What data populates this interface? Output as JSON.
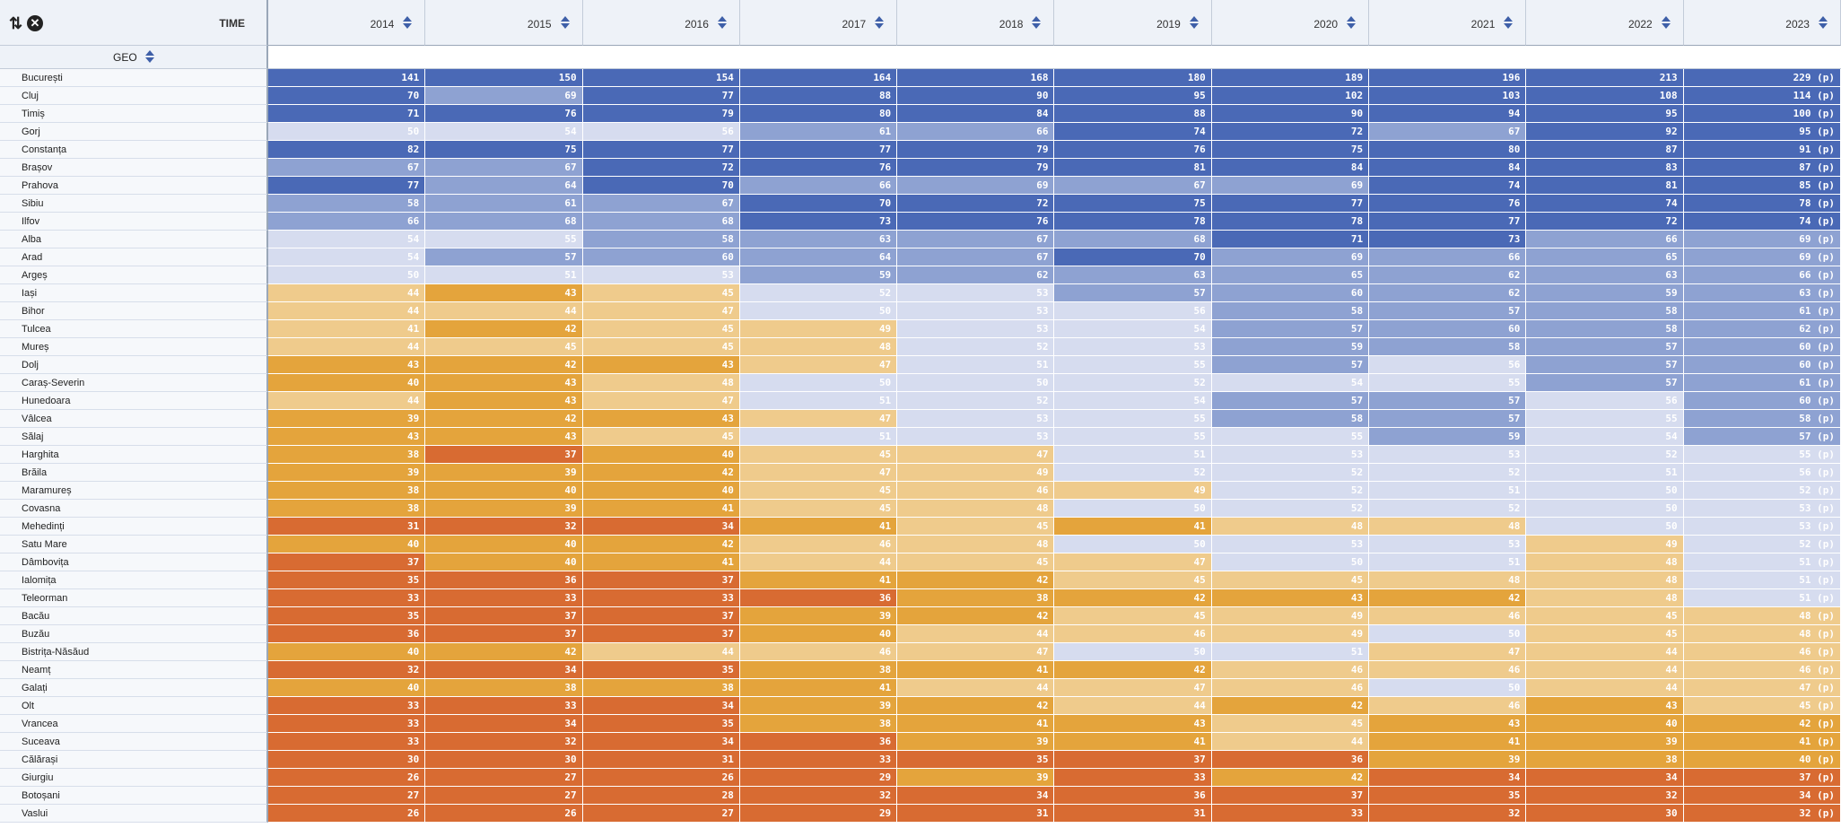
{
  "toolbar": {
    "sort_icon": "sort-arrows-icon",
    "close_icon": "close-circle-icon",
    "time_label": "TIME"
  },
  "geo_label": "GEO",
  "colors": {
    "dark_blue": "#4a69b6",
    "mid_blue": "#8ea2d2",
    "light_blue": "#d6dcef",
    "light_orange": "#efcb8c",
    "orange": "#e4a43c",
    "dark_orange": "#d86b32"
  },
  "years": [
    "2014",
    "2015",
    "2016",
    "2017",
    "2018",
    "2019",
    "2020",
    "2021",
    "2022",
    "2023"
  ],
  "rows": [
    {
      "label": "București",
      "values": [
        "141",
        "150",
        "154",
        "164",
        "168",
        "180",
        "189",
        "196",
        "213",
        "229 (p)"
      ],
      "levels": [
        6,
        6,
        6,
        6,
        6,
        6,
        6,
        6,
        6,
        6
      ]
    },
    {
      "label": "Cluj",
      "values": [
        "70",
        "69",
        "77",
        "88",
        "90",
        "95",
        "102",
        "103",
        "108",
        "114 (p)"
      ],
      "levels": [
        6,
        5,
        6,
        6,
        6,
        6,
        6,
        6,
        6,
        6
      ]
    },
    {
      "label": "Timiș",
      "values": [
        "71",
        "76",
        "79",
        "80",
        "84",
        "88",
        "90",
        "94",
        "95",
        "100 (p)"
      ],
      "levels": [
        6,
        6,
        6,
        6,
        6,
        6,
        6,
        6,
        6,
        6
      ]
    },
    {
      "label": "Gorj",
      "values": [
        "50",
        "54",
        "56",
        "61",
        "66",
        "74",
        "72",
        "67",
        "92",
        "95 (p)"
      ],
      "levels": [
        4,
        4,
        4,
        5,
        5,
        6,
        6,
        5,
        6,
        6
      ]
    },
    {
      "label": "Constanța",
      "values": [
        "82",
        "75",
        "77",
        "77",
        "79",
        "76",
        "75",
        "80",
        "87",
        "91 (p)"
      ],
      "levels": [
        6,
        6,
        6,
        6,
        6,
        6,
        6,
        6,
        6,
        6
      ]
    },
    {
      "label": "Brașov",
      "values": [
        "67",
        "67",
        "72",
        "76",
        "79",
        "81",
        "84",
        "84",
        "83",
        "87 (p)"
      ],
      "levels": [
        5,
        5,
        6,
        6,
        6,
        6,
        6,
        6,
        6,
        6
      ]
    },
    {
      "label": "Prahova",
      "values": [
        "77",
        "64",
        "70",
        "66",
        "69",
        "67",
        "69",
        "74",
        "81",
        "85 (p)"
      ],
      "levels": [
        6,
        5,
        6,
        5,
        5,
        5,
        5,
        6,
        6,
        6
      ]
    },
    {
      "label": "Sibiu",
      "values": [
        "58",
        "61",
        "67",
        "70",
        "72",
        "75",
        "77",
        "76",
        "74",
        "78 (p)"
      ],
      "levels": [
        5,
        5,
        5,
        6,
        6,
        6,
        6,
        6,
        6,
        6
      ]
    },
    {
      "label": "Ilfov",
      "values": [
        "66",
        "68",
        "68",
        "73",
        "76",
        "78",
        "78",
        "77",
        "72",
        "74 (p)"
      ],
      "levels": [
        5,
        5,
        5,
        6,
        6,
        6,
        6,
        6,
        6,
        6
      ]
    },
    {
      "label": "Alba",
      "values": [
        "54",
        "55",
        "58",
        "63",
        "67",
        "68",
        "71",
        "73",
        "66",
        "69 (p)"
      ],
      "levels": [
        4,
        4,
        5,
        5,
        5,
        5,
        6,
        6,
        5,
        5
      ]
    },
    {
      "label": "Arad",
      "values": [
        "54",
        "57",
        "60",
        "64",
        "67",
        "70",
        "69",
        "66",
        "65",
        "69 (p)"
      ],
      "levels": [
        4,
        5,
        5,
        5,
        5,
        6,
        5,
        5,
        5,
        5
      ]
    },
    {
      "label": "Argeș",
      "values": [
        "50",
        "51",
        "53",
        "59",
        "62",
        "63",
        "65",
        "62",
        "63",
        "66 (p)"
      ],
      "levels": [
        4,
        4,
        4,
        5,
        5,
        5,
        5,
        5,
        5,
        5
      ]
    },
    {
      "label": "Iași",
      "values": [
        "44",
        "43",
        "45",
        "52",
        "53",
        "57",
        "60",
        "62",
        "59",
        "63 (p)"
      ],
      "levels": [
        3,
        2,
        3,
        4,
        4,
        5,
        5,
        5,
        5,
        5
      ]
    },
    {
      "label": "Bihor",
      "values": [
        "44",
        "44",
        "47",
        "50",
        "53",
        "56",
        "58",
        "57",
        "58",
        "61 (p)"
      ],
      "levels": [
        3,
        3,
        3,
        4,
        4,
        4,
        5,
        5,
        5,
        5
      ]
    },
    {
      "label": "Tulcea",
      "values": [
        "41",
        "42",
        "45",
        "49",
        "53",
        "54",
        "57",
        "60",
        "58",
        "62 (p)"
      ],
      "levels": [
        3,
        2,
        3,
        3,
        4,
        4,
        5,
        5,
        5,
        5
      ]
    },
    {
      "label": "Mureș",
      "values": [
        "44",
        "45",
        "45",
        "48",
        "52",
        "53",
        "59",
        "58",
        "57",
        "60 (p)"
      ],
      "levels": [
        3,
        3,
        3,
        3,
        4,
        4,
        5,
        5,
        5,
        5
      ]
    },
    {
      "label": "Dolj",
      "values": [
        "43",
        "42",
        "43",
        "47",
        "51",
        "55",
        "57",
        "56",
        "57",
        "60 (p)"
      ],
      "levels": [
        2,
        2,
        2,
        3,
        4,
        4,
        5,
        4,
        5,
        5
      ]
    },
    {
      "label": "Caraș-Severin",
      "values": [
        "40",
        "43",
        "48",
        "50",
        "50",
        "52",
        "54",
        "55",
        "57",
        "61 (p)"
      ],
      "levels": [
        2,
        2,
        3,
        4,
        4,
        4,
        4,
        4,
        5,
        5
      ]
    },
    {
      "label": "Hunedoara",
      "values": [
        "44",
        "43",
        "47",
        "51",
        "52",
        "54",
        "57",
        "57",
        "56",
        "60 (p)"
      ],
      "levels": [
        3,
        2,
        3,
        4,
        4,
        4,
        5,
        5,
        4,
        5
      ]
    },
    {
      "label": "Vâlcea",
      "values": [
        "39",
        "42",
        "43",
        "47",
        "53",
        "55",
        "58",
        "57",
        "55",
        "58 (p)"
      ],
      "levels": [
        2,
        2,
        2,
        3,
        4,
        4,
        5,
        5,
        4,
        5
      ]
    },
    {
      "label": "Sălaj",
      "values": [
        "43",
        "43",
        "45",
        "51",
        "53",
        "55",
        "55",
        "59",
        "54",
        "57 (p)"
      ],
      "levels": [
        2,
        2,
        3,
        4,
        4,
        4,
        4,
        5,
        4,
        5
      ]
    },
    {
      "label": "Harghita",
      "values": [
        "38",
        "37",
        "40",
        "45",
        "47",
        "51",
        "53",
        "53",
        "52",
        "55 (p)"
      ],
      "levels": [
        2,
        1,
        2,
        3,
        3,
        4,
        4,
        4,
        4,
        4
      ]
    },
    {
      "label": "Brăila",
      "values": [
        "39",
        "39",
        "42",
        "47",
        "49",
        "52",
        "52",
        "52",
        "51",
        "56 (p)"
      ],
      "levels": [
        2,
        2,
        2,
        3,
        3,
        4,
        4,
        4,
        4,
        4
      ]
    },
    {
      "label": "Maramureș",
      "values": [
        "38",
        "40",
        "40",
        "45",
        "46",
        "49",
        "52",
        "51",
        "50",
        "52 (p)"
      ],
      "levels": [
        2,
        2,
        2,
        3,
        3,
        3,
        4,
        4,
        4,
        4
      ]
    },
    {
      "label": "Covasna",
      "values": [
        "38",
        "39",
        "41",
        "45",
        "48",
        "50",
        "52",
        "52",
        "50",
        "53 (p)"
      ],
      "levels": [
        2,
        2,
        2,
        3,
        3,
        4,
        4,
        4,
        4,
        4
      ]
    },
    {
      "label": "Mehedinți",
      "values": [
        "31",
        "32",
        "34",
        "41",
        "45",
        "41",
        "48",
        "48",
        "50",
        "53 (p)"
      ],
      "levels": [
        1,
        1,
        1,
        2,
        3,
        2,
        3,
        3,
        4,
        4
      ]
    },
    {
      "label": "Satu Mare",
      "values": [
        "40",
        "40",
        "42",
        "46",
        "48",
        "50",
        "53",
        "53",
        "49",
        "52 (p)"
      ],
      "levels": [
        2,
        2,
        2,
        3,
        3,
        4,
        4,
        4,
        3,
        4
      ]
    },
    {
      "label": "Dâmbovița",
      "values": [
        "37",
        "40",
        "41",
        "44",
        "45",
        "47",
        "50",
        "51",
        "48",
        "51 (p)"
      ],
      "levels": [
        1,
        2,
        2,
        3,
        3,
        3,
        4,
        4,
        3,
        4
      ]
    },
    {
      "label": "Ialomița",
      "values": [
        "35",
        "36",
        "37",
        "41",
        "42",
        "45",
        "45",
        "48",
        "48",
        "51 (p)"
      ],
      "levels": [
        1,
        1,
        1,
        2,
        2,
        3,
        3,
        3,
        3,
        4
      ]
    },
    {
      "label": "Teleorman",
      "values": [
        "33",
        "33",
        "33",
        "36",
        "38",
        "42",
        "43",
        "42",
        "48",
        "51 (p)"
      ],
      "levels": [
        1,
        1,
        1,
        1,
        2,
        2,
        2,
        2,
        3,
        4
      ]
    },
    {
      "label": "Bacău",
      "values": [
        "35",
        "37",
        "37",
        "39",
        "42",
        "45",
        "49",
        "46",
        "45",
        "48 (p)"
      ],
      "levels": [
        1,
        1,
        1,
        2,
        2,
        3,
        3,
        3,
        3,
        3
      ]
    },
    {
      "label": "Buzău",
      "values": [
        "36",
        "37",
        "37",
        "40",
        "44",
        "46",
        "49",
        "50",
        "45",
        "48 (p)"
      ],
      "levels": [
        1,
        1,
        1,
        2,
        3,
        3,
        3,
        4,
        3,
        3
      ]
    },
    {
      "label": "Bistrița-Năsăud",
      "values": [
        "40",
        "42",
        "44",
        "46",
        "47",
        "50",
        "51",
        "47",
        "44",
        "46 (p)"
      ],
      "levels": [
        2,
        2,
        3,
        3,
        3,
        4,
        4,
        3,
        3,
        3
      ]
    },
    {
      "label": "Neamț",
      "values": [
        "32",
        "34",
        "35",
        "38",
        "41",
        "42",
        "46",
        "46",
        "44",
        "46 (p)"
      ],
      "levels": [
        1,
        1,
        1,
        2,
        2,
        2,
        3,
        3,
        3,
        3
      ]
    },
    {
      "label": "Galați",
      "values": [
        "40",
        "38",
        "38",
        "41",
        "44",
        "47",
        "46",
        "50",
        "44",
        "47 (p)"
      ],
      "levels": [
        2,
        2,
        2,
        2,
        3,
        3,
        3,
        4,
        3,
        3
      ]
    },
    {
      "label": "Olt",
      "values": [
        "33",
        "33",
        "34",
        "39",
        "42",
        "44",
        "42",
        "46",
        "43",
        "45 (p)"
      ],
      "levels": [
        1,
        1,
        1,
        2,
        2,
        3,
        2,
        3,
        2,
        3
      ]
    },
    {
      "label": "Vrancea",
      "values": [
        "33",
        "34",
        "35",
        "38",
        "41",
        "43",
        "45",
        "43",
        "40",
        "42 (p)"
      ],
      "levels": [
        1,
        1,
        1,
        2,
        2,
        2,
        3,
        2,
        2,
        2
      ]
    },
    {
      "label": "Suceava",
      "values": [
        "33",
        "32",
        "34",
        "36",
        "39",
        "41",
        "44",
        "41",
        "39",
        "41 (p)"
      ],
      "levels": [
        1,
        1,
        1,
        1,
        2,
        2,
        3,
        2,
        2,
        2
      ]
    },
    {
      "label": "Călărași",
      "values": [
        "30",
        "30",
        "31",
        "33",
        "35",
        "37",
        "36",
        "39",
        "38",
        "40 (p)"
      ],
      "levels": [
        1,
        1,
        1,
        1,
        1,
        1,
        1,
        2,
        2,
        2
      ]
    },
    {
      "label": "Giurgiu",
      "values": [
        "26",
        "27",
        "26",
        "29",
        "39",
        "33",
        "42",
        "34",
        "34",
        "37 (p)"
      ],
      "levels": [
        1,
        1,
        1,
        1,
        2,
        1,
        2,
        1,
        1,
        1
      ]
    },
    {
      "label": "Botoșani",
      "values": [
        "27",
        "27",
        "28",
        "32",
        "34",
        "36",
        "37",
        "35",
        "32",
        "34 (p)"
      ],
      "levels": [
        1,
        1,
        1,
        1,
        1,
        1,
        1,
        1,
        1,
        1
      ]
    },
    {
      "label": "Vaslui",
      "values": [
        "26",
        "26",
        "27",
        "29",
        "31",
        "31",
        "33",
        "32",
        "30",
        "32 (p)"
      ],
      "levels": [
        1,
        1,
        1,
        1,
        1,
        1,
        1,
        1,
        1,
        1
      ]
    }
  ]
}
